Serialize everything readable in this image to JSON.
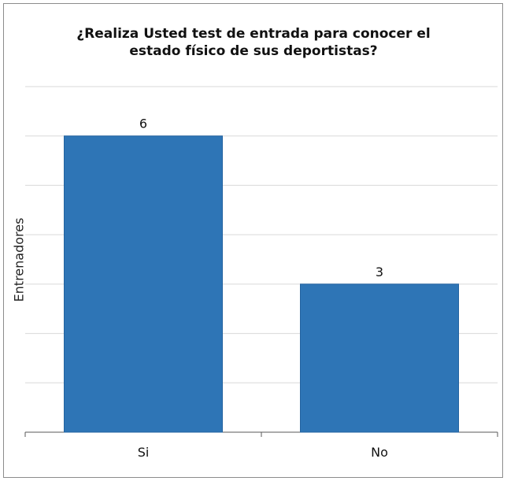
{
  "chart_data": {
    "type": "bar",
    "title_lines": [
      "¿Realiza Usted test de entrada para conocer el",
      "estado físico de sus deportistas?"
    ],
    "xlabel": "",
    "ylabel": "Entrenadores",
    "categories": [
      "Si",
      "No"
    ],
    "values": [
      6,
      3
    ],
    "ylim": [
      0,
      7
    ],
    "grid": true,
    "legend": "none",
    "data_labels": true,
    "colors": {
      "bar": "#2e75b6",
      "bar_edge": "#2363a0",
      "grid": "#d9d9d9",
      "axis": "#595959"
    }
  }
}
